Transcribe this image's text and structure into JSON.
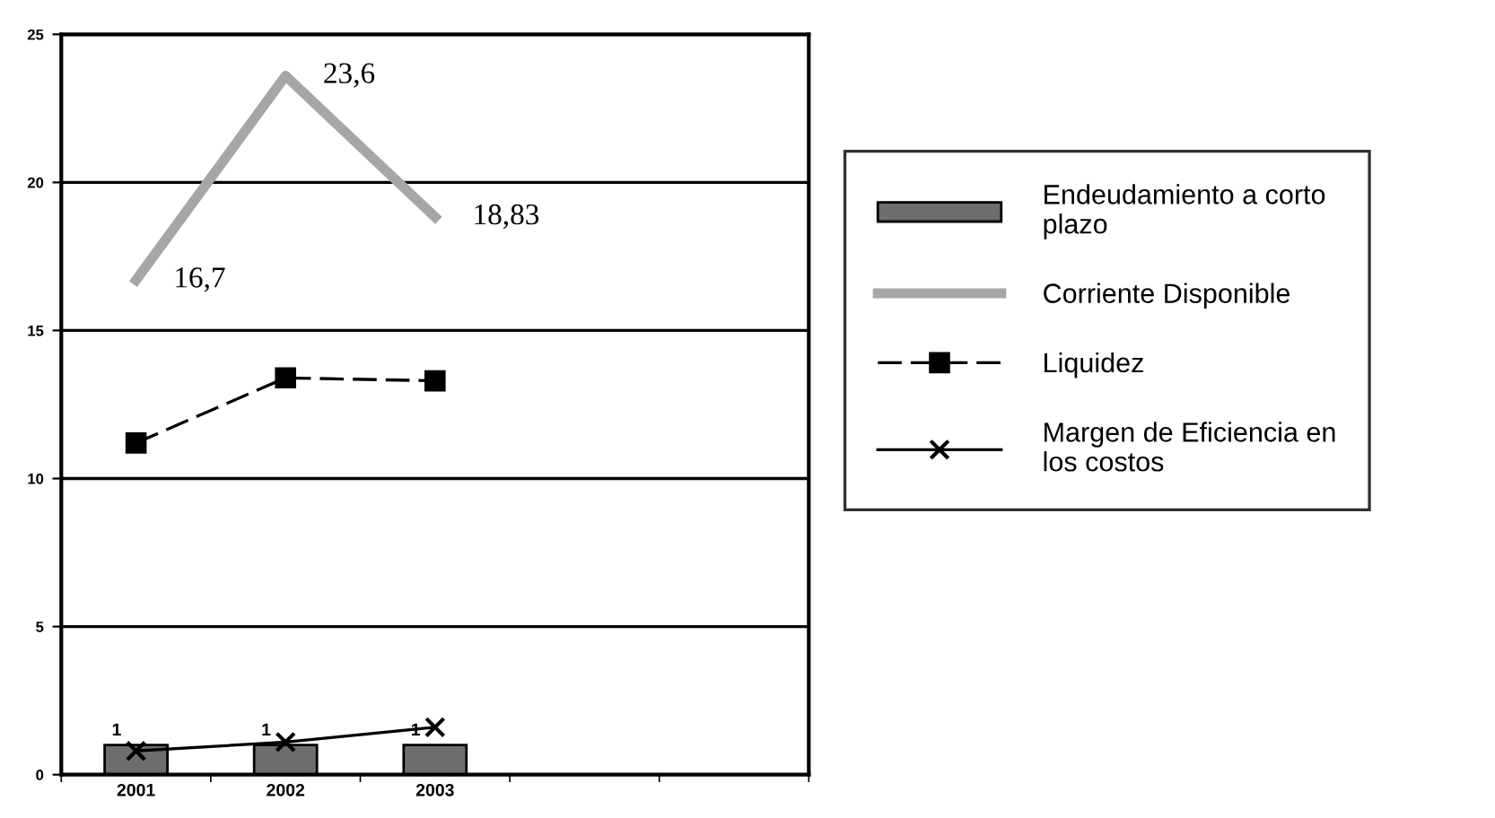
{
  "chart_data": {
    "type": "bar",
    "categories": [
      "2001",
      "2002",
      "2003",
      null,
      null
    ],
    "series": [
      {
        "name": "Endeudamiento a corto\nplazo",
        "color": "#6e6e6e",
        "values": [
          1,
          1,
          1,
          null,
          null
        ],
        "value_labels": [
          "1",
          "1",
          "1",
          null,
          null
        ]
      },
      {
        "name": "Corriente Disponible",
        "type": "line",
        "color": "#a6a6a6",
        "values": [
          16.7,
          23.6,
          18.83,
          null,
          null
        ],
        "value_labels": [
          "16,7",
          "23,6",
          "18,83",
          null,
          null
        ]
      },
      {
        "name": "Liquidez",
        "type": "line",
        "color": "#000000",
        "values": [
          11.2,
          13.4,
          13.3,
          null,
          null
        ],
        "marker": "square",
        "line_style": "dashed"
      },
      {
        "name": "Margen de Eficiencia en\nlos costos",
        "type": "line",
        "color": "#000000",
        "values": [
          0.8,
          1.1,
          1.6,
          null,
          null
        ],
        "marker": "cross"
      }
    ],
    "ylim": [
      0,
      25
    ],
    "yticks": [
      0,
      5,
      10,
      15,
      20,
      25
    ],
    "grid": "y",
    "legend": "right"
  }
}
